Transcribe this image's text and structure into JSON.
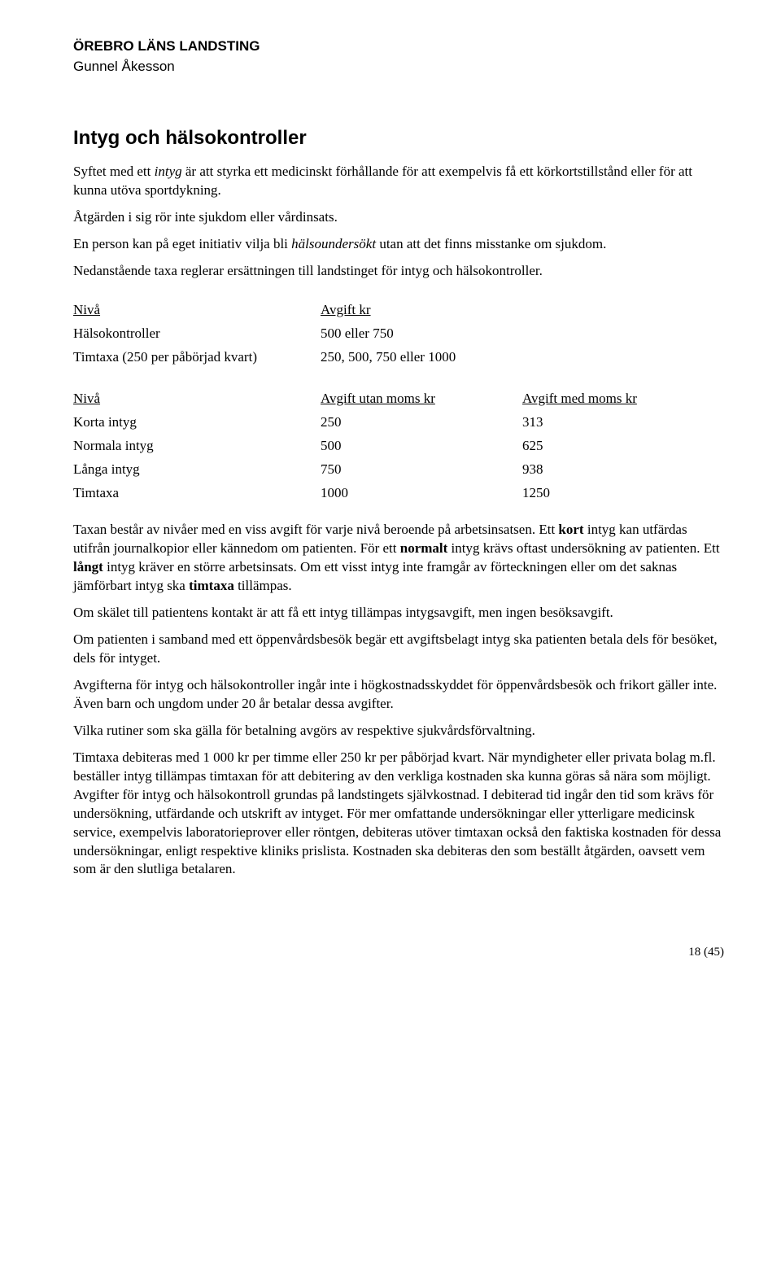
{
  "header": {
    "org": "ÖREBRO LÄNS LANDSTING",
    "name": "Gunnel Åkesson"
  },
  "title": "Intyg och hälsokontroller",
  "intro": {
    "p1_a": "Syftet med ett ",
    "p1_b": "intyg",
    "p1_c": " är att styrka ett medicinskt förhållande för att exempelvis få ett körkortstillstånd eller för att kunna utöva sportdykning.",
    "p2_a": "Åtgärden i sig rör inte sjukdom eller vårdinsats.",
    "p3_a": "En person kan på eget initiativ vilja bli ",
    "p3_b": "hälsoundersökt",
    "p3_c": " utan att det finns misstanke om sjukdom.",
    "p4": "Nedanstående taxa reglerar ersättningen till landstinget för intyg och hälsokontroller."
  },
  "table1": {
    "h1": "Nivå",
    "h2": "Avgift kr",
    "r1c1": "Hälsokontroller",
    "r1c2": "500 eller 750",
    "r2c1": "Timtaxa (250 per påbörjad kvart)",
    "r2c2": "250, 500, 750 eller 1000"
  },
  "table2": {
    "h1": "Nivå",
    "h2": "Avgift utan moms kr",
    "h3": "Avgift med moms kr",
    "rows": [
      {
        "c1": "Korta intyg",
        "c2": "250",
        "c3": "313"
      },
      {
        "c1": "Normala intyg",
        "c2": "500",
        "c3": "625"
      },
      {
        "c1": "Långa intyg",
        "c2": "750",
        "c3": "938"
      },
      {
        "c1": "Timtaxa",
        "c2": "1000",
        "c3": "1250"
      }
    ]
  },
  "body": {
    "p1_a": "Taxan består av nivåer med en viss avgift för varje nivå beroende på arbetsinsatsen. Ett ",
    "p1_b": "kort",
    "p1_c": " intyg kan utfärdas utifrån journalkopior eller kännedom om patienten. För ett ",
    "p1_d": "normalt",
    "p1_e": " intyg krävs oftast undersökning av patienten. Ett ",
    "p1_f": "långt",
    "p1_g": " intyg kräver en större arbetsinsats. Om ett visst intyg inte framgår av förteckningen eller om det saknas jämförbart intyg ska ",
    "p1_h": "timtaxa",
    "p1_i": " tillämpas.",
    "p2": "Om skälet till patientens kontakt är att få ett intyg tillämpas intygsavgift, men ingen besöksavgift.",
    "p3": "Om patienten i samband med ett öppenvårdsbesök begär ett avgiftsbelagt intyg ska patienten betala dels för besöket, dels för intyget.",
    "p4": "Avgifterna för intyg och hälsokontroller ingår inte i högkostnadsskyddet för öppenvårdsbesök och frikort gäller inte. Även barn och ungdom under 20 år betalar dessa avgifter.",
    "p5": "Vilka rutiner som ska gälla för betalning avgörs av respektive sjukvårdsförvaltning.",
    "p6": "Timtaxa debiteras med 1 000 kr per timme eller 250 kr per påbörjad kvart. När myndigheter eller privata bolag m.fl. beställer intyg tillämpas timtaxan för att debitering av den verkliga kostnaden ska kunna göras så nära som möjligt. Avgifter för intyg och hälsokontroll grundas på landstingets självkostnad. I debiterad tid ingår den tid som krävs för undersökning, utfärdande och utskrift av intyget. För mer omfattande undersökningar eller ytterligare medicinsk service, exempelvis laboratorieprover eller röntgen, debiteras utöver timtaxan också den faktiska kostnaden för dessa undersökningar, enligt respektive kliniks prislista. Kostnaden ska debiteras den som beställt åtgärden, oavsett vem som är den slutliga betalaren."
  },
  "footer": "18 (45)"
}
